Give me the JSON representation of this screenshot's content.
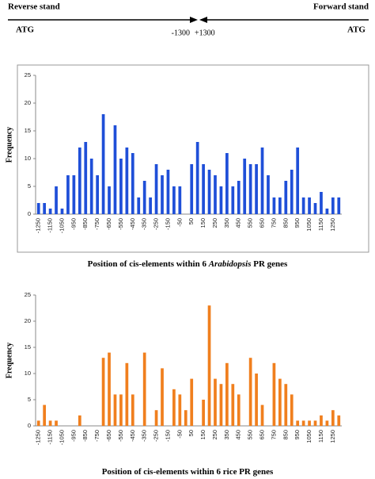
{
  "header": {
    "left_label": "Reverse stand",
    "right_label": "Forward stand",
    "left_atg": "ATG",
    "right_atg": "ATG",
    "left_pos": "-1300",
    "right_pos": "+1300"
  },
  "chart_data": [
    {
      "type": "bar",
      "title": [
        "Position of cis-elements within 6 ",
        "Arabidopsis",
        " PR genes"
      ],
      "y_label": "Frequency",
      "color": "#1f4fd8",
      "frame": true,
      "categories": [
        "-1250",
        null,
        "-1150",
        null,
        "-1050",
        null,
        "-950",
        null,
        "-850",
        null,
        "-750",
        null,
        "-650",
        null,
        "-550",
        null,
        "-450",
        null,
        "-350",
        null,
        "-250",
        null,
        "-150",
        null,
        "-50",
        null,
        "50",
        null,
        "150",
        null,
        "250",
        null,
        "350",
        null,
        "450",
        null,
        "550",
        null,
        "650",
        null,
        "750",
        null,
        "850",
        null,
        "950",
        null,
        "1050",
        null,
        "1150",
        null,
        "1250",
        null
      ],
      "values": [
        2,
        2,
        1,
        5,
        1,
        7,
        7,
        12,
        13,
        10,
        7,
        18,
        5,
        16,
        10,
        12,
        11,
        3,
        6,
        3,
        9,
        7,
        8,
        5,
        5,
        0,
        9,
        13,
        9,
        8,
        7,
        5,
        11,
        5,
        6,
        10,
        9,
        9,
        12,
        7,
        3,
        3,
        6,
        8,
        12,
        3,
        3,
        2,
        4,
        1,
        3,
        3
      ],
      "ylim": [
        0,
        25
      ],
      "yticks": [
        0,
        5,
        10,
        15,
        20,
        25
      ]
    },
    {
      "type": "bar",
      "title": [
        "Position of cis-elements within 6 rice PR genes"
      ],
      "y_label": "Frequency",
      "color": "#f07f1e",
      "frame": false,
      "categories": [
        "-1250",
        null,
        "-1150",
        null,
        "-1050",
        null,
        "-950",
        null,
        "-850",
        null,
        "-750",
        null,
        "-650",
        null,
        "-550",
        null,
        "-450",
        null,
        "-350",
        null,
        "-250",
        null,
        "-150",
        null,
        "-50",
        null,
        "50",
        null,
        "150",
        null,
        "250",
        null,
        "350",
        null,
        "450",
        null,
        "550",
        null,
        "650",
        null,
        "750",
        null,
        "850",
        null,
        "950",
        null,
        "1050",
        null,
        "1150",
        null,
        "1250",
        null
      ],
      "values": [
        1,
        4,
        1,
        1,
        0,
        0,
        0,
        2,
        0,
        0,
        0,
        13,
        14,
        6,
        6,
        12,
        6,
        0,
        14,
        0,
        3,
        11,
        0,
        7,
        6,
        3,
        9,
        0,
        5,
        23,
        9,
        8,
        12,
        8,
        6,
        0,
        13,
        10,
        4,
        0,
        12,
        9,
        8,
        6,
        1,
        1,
        1,
        1,
        2,
        1,
        3,
        2
      ],
      "ylim": [
        0,
        25
      ],
      "yticks": [
        0,
        5,
        10,
        15,
        20,
        25
      ]
    }
  ]
}
